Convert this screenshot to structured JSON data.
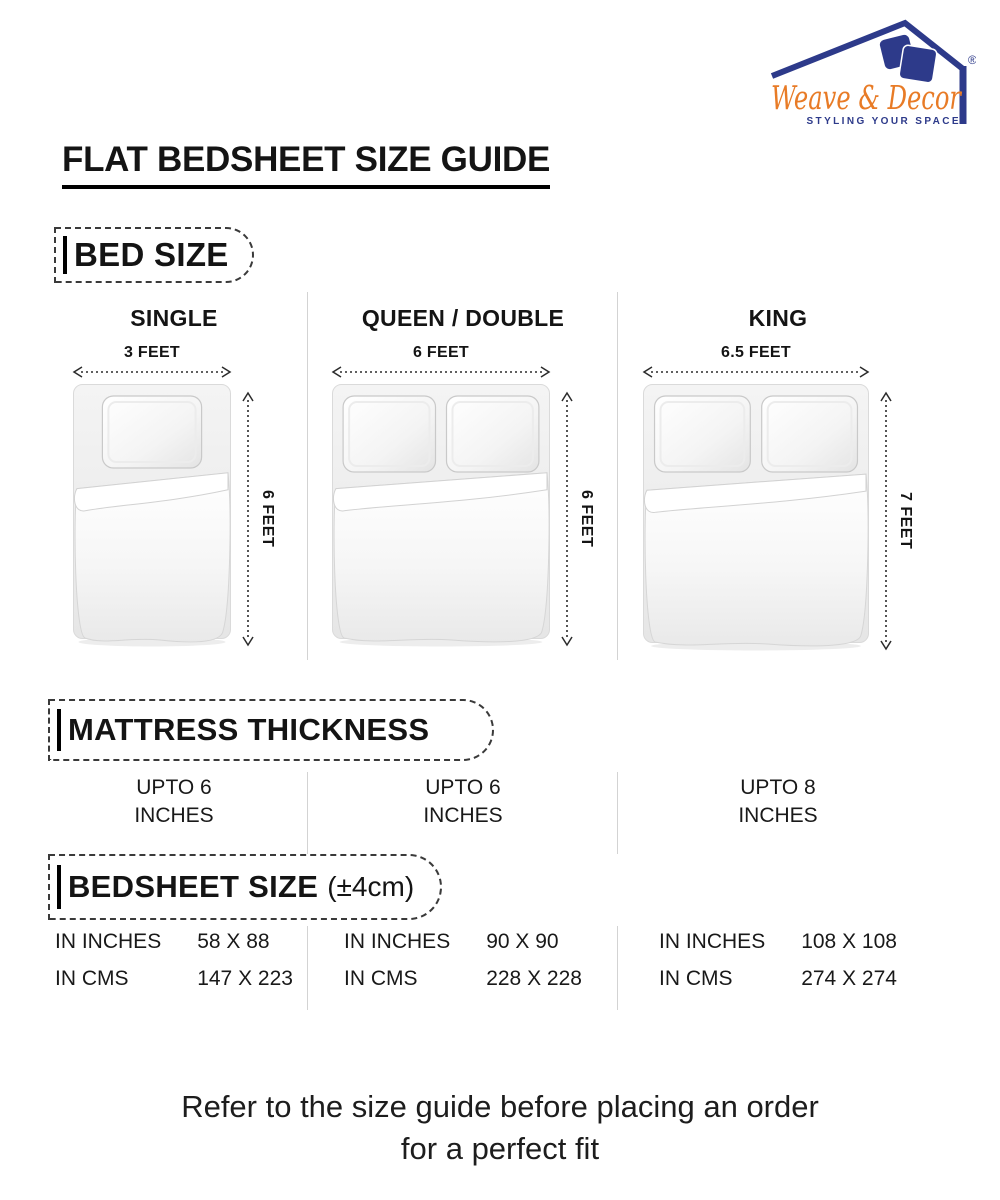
{
  "brand": {
    "name": "Weave & Decor",
    "tagline": "STYLING YOUR SPACE",
    "registered_mark": "®"
  },
  "colors": {
    "brand_navy": "#2d3a8a",
    "brand_orange": "#e87b26"
  },
  "page_title": "FLAT BEDSHEET SIZE GUIDE",
  "sections": {
    "bed_size": "BED SIZE",
    "mattress_thickness": "MATTRESS THICKNESS",
    "bedsheet_size": "BEDSHEET SIZE",
    "bedsheet_tolerance": "(±4cm)"
  },
  "columns": [
    {
      "name": "SINGLE",
      "width_feet": "3 FEET",
      "length_feet": "6 FEET",
      "pillows": 1,
      "mattress_line1": "UPTO 6",
      "mattress_line2": "INCHES",
      "size_rows": [
        {
          "label": "IN INCHES",
          "value": "58 X 88"
        },
        {
          "label": "IN CMS",
          "value": "147 X 223"
        }
      ]
    },
    {
      "name": "QUEEN / DOUBLE",
      "width_feet": "6 FEET",
      "length_feet": "6 FEET",
      "pillows": 2,
      "mattress_line1": "UPTO 6",
      "mattress_line2": "INCHES",
      "size_rows": [
        {
          "label": "IN INCHES",
          "value": "90 X 90"
        },
        {
          "label": "IN CMS",
          "value": "228 X 228"
        }
      ]
    },
    {
      "name": "KING",
      "width_feet": "6.5 FEET",
      "length_feet": "7 FEET",
      "pillows": 2,
      "mattress_line1": "UPTO 8",
      "mattress_line2": "INCHES",
      "size_rows": [
        {
          "label": "IN INCHES",
          "value": "108 X 108"
        },
        {
          "label": "IN CMS",
          "value": "274 X 274"
        }
      ]
    }
  ],
  "footer": {
    "line1": "Refer to the size guide before placing an order",
    "line2": "for a perfect fit"
  }
}
